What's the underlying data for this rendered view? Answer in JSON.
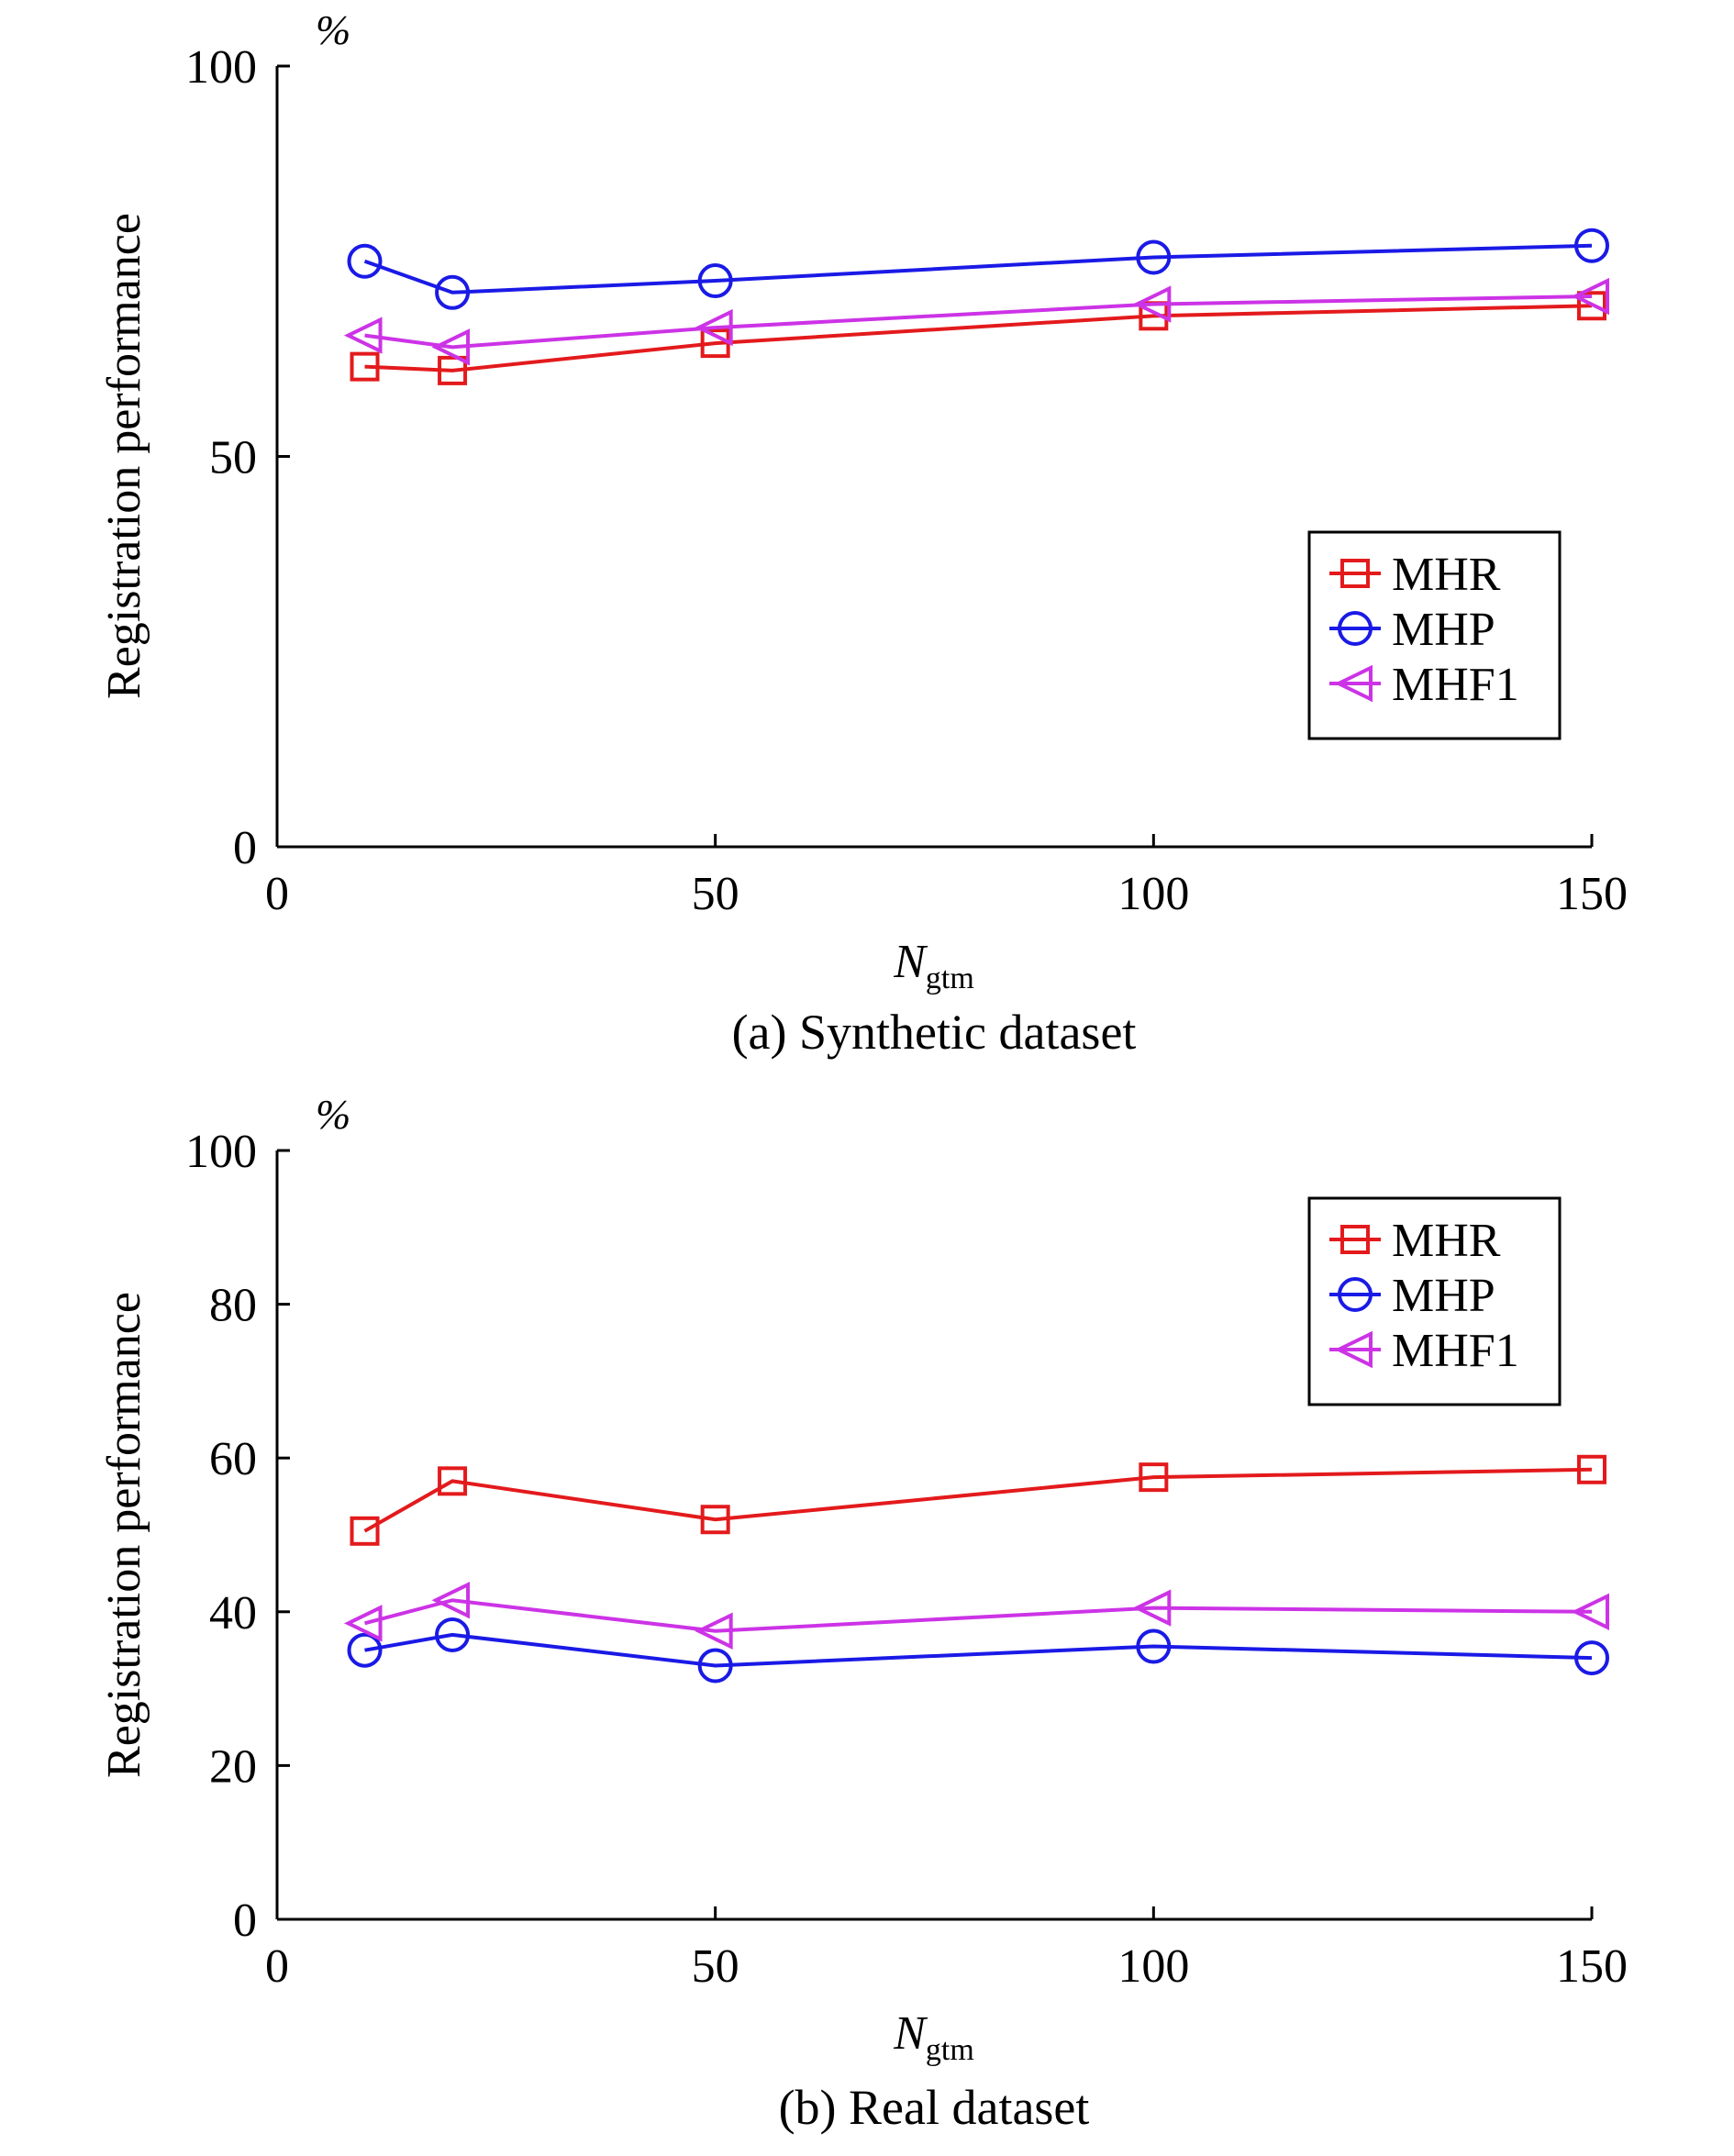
{
  "chart_data": [
    {
      "type": "line",
      "caption": "(a) Synthetic dataset",
      "unit_label": "%",
      "ylabel": "Registration performance",
      "xlabel_main": "N",
      "xlabel_sub": "gtm",
      "xlim": [
        0,
        150
      ],
      "ylim": [
        0,
        100
      ],
      "xticks": [
        0,
        50,
        100,
        150
      ],
      "yticks": [
        0,
        50,
        100
      ],
      "grid": false,
      "legend_position": "right",
      "x": [
        10,
        20,
        50,
        100,
        150
      ],
      "series": [
        {
          "name": "MHR",
          "color": "#e31a1c",
          "marker": "square",
          "values": [
            61.5,
            61.0,
            64.5,
            68.0,
            69.3
          ]
        },
        {
          "name": "MHP",
          "color": "#1a1ae6",
          "marker": "circle",
          "values": [
            75.0,
            71.0,
            72.5,
            75.5,
            77.0
          ]
        },
        {
          "name": "MHF1",
          "color": "#cc33e6",
          "marker": "triangle-left",
          "values": [
            65.5,
            64.0,
            66.5,
            69.5,
            70.5
          ]
        }
      ]
    },
    {
      "type": "line",
      "caption": "(b) Real dataset",
      "unit_label": "%",
      "ylabel": "Registration performance",
      "xlabel_main": "N",
      "xlabel_sub": "gtm",
      "xlim": [
        0,
        150
      ],
      "ylim": [
        0,
        100
      ],
      "xticks": [
        0,
        50,
        100,
        150
      ],
      "yticks": [
        0,
        20,
        40,
        60,
        80,
        100
      ],
      "grid": false,
      "legend_position": "top-right",
      "x": [
        10,
        20,
        50,
        100,
        150
      ],
      "series": [
        {
          "name": "MHR",
          "color": "#e31a1c",
          "marker": "square",
          "values": [
            50.5,
            57.0,
            52.0,
            57.5,
            58.5
          ]
        },
        {
          "name": "MHP",
          "color": "#1a1ae6",
          "marker": "circle",
          "values": [
            35.0,
            37.0,
            33.0,
            35.5,
            34.0
          ]
        },
        {
          "name": "MHF1",
          "color": "#cc33e6",
          "marker": "triangle-left",
          "values": [
            38.5,
            41.5,
            37.5,
            40.5,
            40.0
          ]
        }
      ]
    }
  ]
}
